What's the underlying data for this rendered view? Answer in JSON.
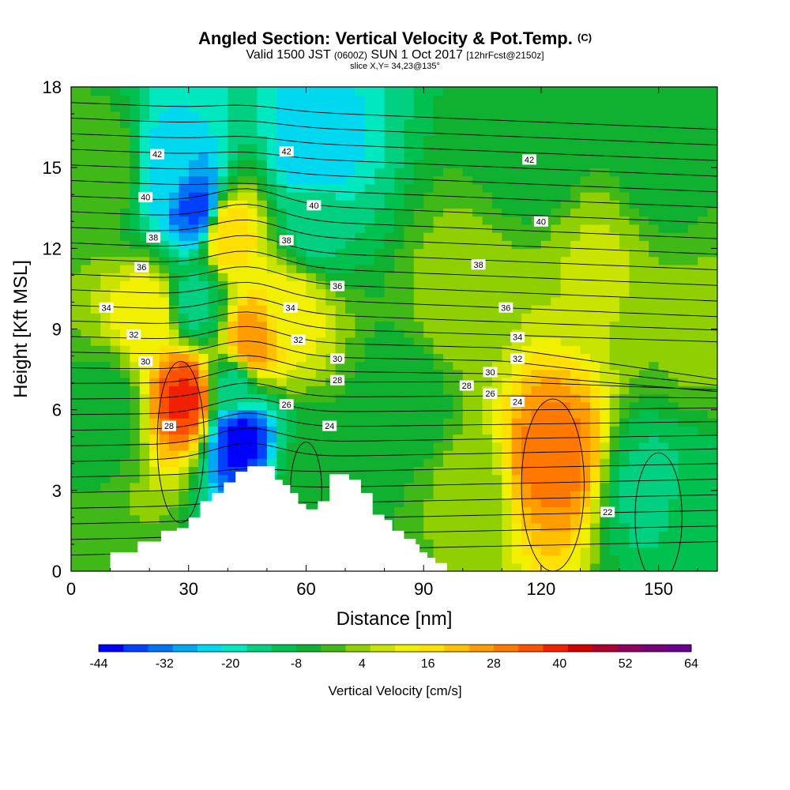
{
  "chart_data": {
    "type": "heatmap",
    "title": "Angled Section: Vertical Velocity & Pot.Temp.",
    "title_suffix": "(C)",
    "subtitle_parts": [
      "Valid 1500 JST",
      "(0600Z)",
      "SUN 1 Oct 2017",
      "[12hrFcst@2150z]"
    ],
    "slice_label": "slice X,Y= 34,23@135°",
    "xlabel": "Distance [nm]",
    "ylabel": "Height [Kft MSL]",
    "xlim": [
      0,
      165
    ],
    "ylim": [
      0,
      18
    ],
    "x_ticks": [
      "0",
      "30",
      "60",
      "90",
      "120",
      "150"
    ],
    "y_ticks": [
      "0",
      "3",
      "6",
      "9",
      "12",
      "15",
      "18"
    ],
    "colorbar": {
      "label": "Vertical Velocity [cm/s]",
      "tick_labels": [
        "-44",
        "-32",
        "-20",
        "-8",
        "4",
        "16",
        "28",
        "40",
        "52",
        "64"
      ],
      "colors": [
        "#0000ff",
        "#0040ff",
        "#0073f5",
        "#00a8f0",
        "#00d8f0",
        "#00e8c0",
        "#00d080",
        "#00c050",
        "#10b030",
        "#40b818",
        "#90d000",
        "#c8e400",
        "#f0f000",
        "#ffe000",
        "#ffc000",
        "#ff9c00",
        "#ff7800",
        "#ff5000",
        "#f02000",
        "#d00000",
        "#b00030",
        "#900060",
        "#78007a",
        "#6a0090"
      ]
    },
    "terrain_kft": [
      [
        0,
        0
      ],
      [
        6,
        0
      ],
      [
        10,
        0.7
      ],
      [
        14,
        0.7
      ],
      [
        17,
        1.1
      ],
      [
        20,
        1.1
      ],
      [
        23,
        1.5
      ],
      [
        27,
        1.6
      ],
      [
        30,
        2.0
      ],
      [
        33,
        2.6
      ],
      [
        36,
        2.9
      ],
      [
        39,
        3.3
      ],
      [
        42,
        3.7
      ],
      [
        45,
        3.9
      ],
      [
        48,
        3.9
      ],
      [
        51,
        3.9
      ],
      [
        52,
        3.4
      ],
      [
        54,
        3.2
      ],
      [
        56,
        2.9
      ],
      [
        58,
        2.5
      ],
      [
        60,
        2.3
      ],
      [
        62,
        2.3
      ],
      [
        63,
        2.6
      ],
      [
        65,
        2.6
      ],
      [
        66,
        3.6
      ],
      [
        68,
        3.6
      ],
      [
        70,
        3.6
      ],
      [
        71,
        3.4
      ],
      [
        74,
        2.9
      ],
      [
        77,
        2.1
      ],
      [
        80,
        1.9
      ],
      [
        82,
        1.5
      ],
      [
        85,
        1.2
      ],
      [
        88,
        1.0
      ],
      [
        89,
        0.7
      ],
      [
        91,
        0.5
      ],
      [
        93,
        0.3
      ],
      [
        96,
        0
      ],
      [
        165,
        0
      ]
    ],
    "velocity_cells": [
      {
        "x": 24,
        "y": 15,
        "v": -24
      },
      {
        "x": 32,
        "y": 13.5,
        "v": -36
      },
      {
        "x": 32,
        "y": 10,
        "v": -14
      },
      {
        "x": 62,
        "y": 15.5,
        "v": -26
      },
      {
        "x": 62,
        "y": 13,
        "v": -14
      },
      {
        "x": 43,
        "y": 5,
        "v": -42
      },
      {
        "x": 42,
        "y": 6.8,
        "v": -14
      },
      {
        "x": 29,
        "y": 6.5,
        "v": 38
      },
      {
        "x": 20,
        "y": 9.5,
        "v": 14
      },
      {
        "x": 46,
        "y": 8.5,
        "v": 28
      },
      {
        "x": 40,
        "y": 12.5,
        "v": 18
      },
      {
        "x": 56,
        "y": 9.6,
        "v": 12
      },
      {
        "x": 123,
        "y": 4.3,
        "v": 30
      },
      {
        "x": 10,
        "y": 15,
        "v": 0
      },
      {
        "x": 10,
        "y": 6,
        "v": -6
      },
      {
        "x": 60,
        "y": 3.5,
        "v": -6
      },
      {
        "x": 74,
        "y": 4,
        "v": -4
      },
      {
        "x": 100,
        "y": 10,
        "v": 4
      },
      {
        "x": 160,
        "y": 9,
        "v": 2
      },
      {
        "x": 148,
        "y": 3,
        "v": -14
      },
      {
        "x": 160,
        "y": 2,
        "v": -10
      },
      {
        "x": 85,
        "y": 6,
        "v": -8
      },
      {
        "x": 100,
        "y": 3,
        "v": 2
      },
      {
        "x": 120,
        "y": 16,
        "v": -8
      },
      {
        "x": 150,
        "y": 15,
        "v": -6
      },
      {
        "x": 135,
        "y": 11.5,
        "v": 6
      }
    ],
    "theta_contour_labels": [
      {
        "text": "42",
        "x": 22,
        "y": 15.5
      },
      {
        "text": "42",
        "x": 55,
        "y": 15.6
      },
      {
        "text": "42",
        "x": 117,
        "y": 15.3
      },
      {
        "text": "40",
        "x": 19,
        "y": 13.9
      },
      {
        "text": "40",
        "x": 62,
        "y": 13.6
      },
      {
        "text": "40",
        "x": 120,
        "y": 13.0
      },
      {
        "text": "38",
        "x": 21,
        "y": 12.4
      },
      {
        "text": "38",
        "x": 55,
        "y": 12.3
      },
      {
        "text": "38",
        "x": 104,
        "y": 11.4
      },
      {
        "text": "36",
        "x": 18,
        "y": 11.3
      },
      {
        "text": "36",
        "x": 68,
        "y": 10.6
      },
      {
        "text": "36",
        "x": 111,
        "y": 9.8
      },
      {
        "text": "34",
        "x": 9,
        "y": 9.8
      },
      {
        "text": "34",
        "x": 56,
        "y": 9.8
      },
      {
        "text": "34",
        "x": 114,
        "y": 8.7
      },
      {
        "text": "32",
        "x": 16,
        "y": 8.8
      },
      {
        "text": "32",
        "x": 58,
        "y": 8.6
      },
      {
        "text": "32",
        "x": 114,
        "y": 7.9
      },
      {
        "text": "30",
        "x": 19,
        "y": 7.8
      },
      {
        "text": "30",
        "x": 68,
        "y": 7.9
      },
      {
        "text": "30",
        "x": 107,
        "y": 7.4
      },
      {
        "text": "28",
        "x": 25,
        "y": 5.4
      },
      {
        "text": "28",
        "x": 68,
        "y": 7.1
      },
      {
        "text": "28",
        "x": 101,
        "y": 6.9
      },
      {
        "text": "26",
        "x": 55,
        "y": 6.2
      },
      {
        "text": "26",
        "x": 107,
        "y": 6.6
      },
      {
        "text": "24",
        "x": 66,
        "y": 5.4
      },
      {
        "text": "24",
        "x": 114,
        "y": 6.3
      },
      {
        "text": "22",
        "x": 137,
        "y": 2.2
      }
    ]
  }
}
